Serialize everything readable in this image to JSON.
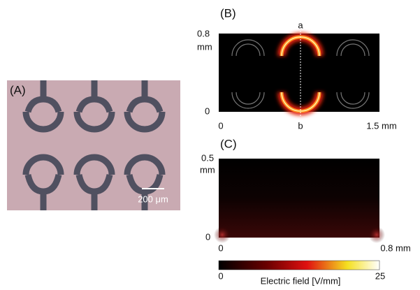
{
  "panels": [
    {
      "label": "(A)",
      "scale_bar": "200 μm"
    },
    {
      "label": "(B)",
      "y_labels": [
        "0.8",
        "mm",
        "0"
      ],
      "x_labels": [
        "0",
        "1.5 mm"
      ],
      "line_labels": [
        "a",
        "b"
      ]
    },
    {
      "label": "(C)",
      "y_labels": [
        "0.5",
        "mm",
        "0"
      ],
      "x_labels": [
        "0",
        "0.8 mm"
      ]
    }
  ],
  "colorbar": {
    "min_label": "0",
    "max_label": "25",
    "title": "Electric field [V/mm]"
  }
}
